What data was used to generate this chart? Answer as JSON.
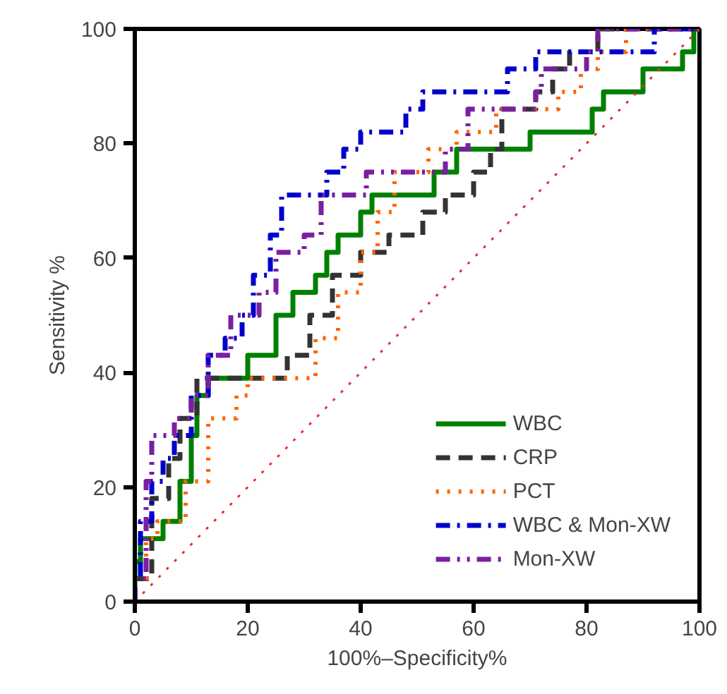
{
  "chart_data": {
    "type": "line",
    "xlabel": "100%–Specificity%",
    "ylabel": "Sensitivity %",
    "xlim": [
      0,
      100
    ],
    "ylim": [
      0,
      100
    ],
    "xticks": [
      0,
      20,
      40,
      60,
      80,
      100
    ],
    "yticks": [
      0,
      20,
      40,
      60,
      80,
      100
    ],
    "grid": false,
    "legend": "bottom right",
    "marker": "none",
    "series": [
      {
        "name": "WBC",
        "color": "#008000",
        "line_style": "solid",
        "x": [
          0,
          0,
          1,
          1,
          5,
          5,
          8,
          8,
          10,
          10,
          11,
          11,
          13,
          13,
          20,
          20,
          25,
          25,
          28,
          28,
          32,
          32,
          34,
          34,
          36,
          36,
          40,
          40,
          42,
          42,
          53,
          53,
          57,
          57,
          70,
          70,
          81,
          81,
          83,
          83,
          90,
          90,
          97,
          97,
          99,
          99,
          100
        ],
        "values": [
          0,
          7,
          7,
          11,
          11,
          14,
          14,
          21,
          21,
          29,
          29,
          36,
          36,
          39,
          39,
          43,
          43,
          50,
          50,
          54,
          54,
          57,
          57,
          61,
          61,
          64,
          64,
          68,
          68,
          71,
          71,
          75,
          75,
          79,
          79,
          82,
          82,
          86,
          86,
          89,
          89,
          93,
          93,
          96,
          96,
          100,
          100
        ]
      },
      {
        "name": "CRP",
        "color": "#333333",
        "line_style": "dashed",
        "x": [
          0,
          0,
          3,
          3,
          6,
          6,
          8,
          8,
          11,
          11,
          27,
          27,
          31,
          31,
          35,
          35,
          40,
          40,
          45,
          45,
          51,
          51,
          55,
          55,
          60,
          60,
          63,
          63,
          65,
          65,
          71,
          71,
          74,
          74,
          77,
          77,
          82,
          82,
          100
        ],
        "values": [
          0,
          4,
          4,
          18,
          18,
          25,
          25,
          32,
          32,
          39,
          39,
          43,
          43,
          50,
          50,
          57,
          57,
          61,
          61,
          64,
          64,
          68,
          68,
          71,
          71,
          75,
          75,
          79,
          79,
          86,
          86,
          89,
          89,
          93,
          93,
          96,
          96,
          100,
          100
        ]
      },
      {
        "name": "PCT",
        "color": "#ff6600",
        "line_style": "dotted",
        "x": [
          0,
          0,
          2,
          2,
          4,
          4,
          9,
          9,
          13,
          13,
          18,
          18,
          20,
          20,
          32,
          32,
          36,
          36,
          40,
          40,
          43,
          43,
          46,
          46,
          52,
          52,
          57,
          57,
          64,
          64,
          75,
          75,
          79,
          79,
          82,
          82,
          87,
          87,
          100
        ],
        "values": [
          0,
          4,
          4,
          11,
          11,
          14,
          14,
          21,
          21,
          32,
          32,
          36,
          36,
          39,
          39,
          46,
          46,
          54,
          54,
          61,
          61,
          68,
          68,
          75,
          75,
          79,
          79,
          82,
          82,
          86,
          86,
          89,
          89,
          93,
          93,
          96,
          96,
          100,
          100
        ]
      },
      {
        "name": "WBC & Mon-XW",
        "color": "#0000cc",
        "line_style": "dashdot",
        "x": [
          0,
          0,
          1,
          1,
          3,
          3,
          5,
          5,
          7,
          7,
          10,
          10,
          13,
          13,
          16,
          16,
          19,
          19,
          21,
          21,
          24,
          24,
          26,
          26,
          34,
          34,
          37,
          37,
          40,
          40,
          48,
          48,
          51,
          51,
          66,
          66,
          71,
          71,
          92,
          92,
          100
        ],
        "values": [
          0,
          4,
          4,
          14,
          14,
          21,
          21,
          25,
          25,
          29,
          29,
          36,
          36,
          43,
          43,
          46,
          46,
          50,
          50,
          57,
          57,
          64,
          64,
          71,
          71,
          75,
          75,
          79,
          79,
          82,
          82,
          86,
          86,
          89,
          89,
          93,
          93,
          96,
          96,
          100,
          100
        ]
      },
      {
        "name": "Mon-XW",
        "color": "#7a1fa2",
        "line_style": "dashdotdot",
        "x": [
          0,
          0,
          2,
          2,
          3,
          3,
          7,
          7,
          10,
          10,
          13,
          13,
          17,
          17,
          22,
          22,
          25,
          25,
          30,
          30,
          33,
          33,
          41,
          41,
          55,
          55,
          59,
          59,
          71,
          71,
          72,
          72,
          80,
          80,
          82,
          82,
          100
        ],
        "values": [
          0,
          4,
          4,
          21,
          21,
          29,
          29,
          32,
          32,
          36,
          36,
          43,
          43,
          50,
          50,
          54,
          54,
          61,
          61,
          64,
          64,
          71,
          71,
          75,
          75,
          79,
          79,
          86,
          86,
          89,
          89,
          93,
          93,
          96,
          96,
          100,
          100
        ]
      },
      {
        "color": "#e83030",
        "line_style": "dotted",
        "x": [
          0,
          100
        ],
        "values": [
          0,
          100
        ]
      }
    ]
  }
}
